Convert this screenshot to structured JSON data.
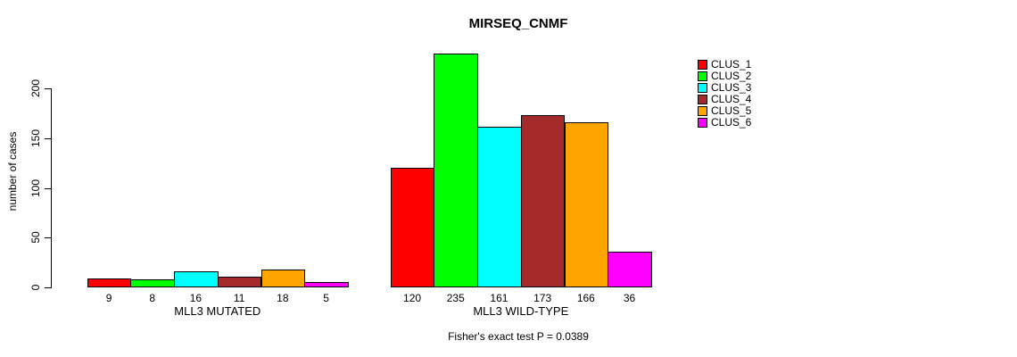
{
  "chart_data": {
    "type": "bar",
    "title": "MIRSEQ_CNMF",
    "ylabel": "number of cases",
    "xlabel": "",
    "ylim": [
      0,
      240
    ],
    "yticks": [
      0,
      50,
      100,
      150,
      200
    ],
    "grid": false,
    "legend_position": "right",
    "categories": [
      "MLL3 MUTATED",
      "MLL3 WILD-TYPE"
    ],
    "series": [
      {
        "name": "CLUS_1",
        "color": "#FF0000",
        "values": [
          9,
          120
        ]
      },
      {
        "name": "CLUS_2",
        "color": "#00FF00",
        "values": [
          8,
          235
        ]
      },
      {
        "name": "CLUS_3",
        "color": "#00FFFF",
        "values": [
          16,
          161
        ]
      },
      {
        "name": "CLUS_4",
        "color": "#A52A2A",
        "values": [
          11,
          173
        ]
      },
      {
        "name": "CLUS_5",
        "color": "#FFA500",
        "values": [
          18,
          166
        ]
      },
      {
        "name": "CLUS_6",
        "color": "#FF00FF",
        "values": [
          5,
          36
        ]
      }
    ],
    "bar_value_labels": [
      [
        "9",
        "8",
        "16",
        "11",
        "18",
        "5"
      ],
      [
        "120",
        "235",
        "161",
        "173",
        "166",
        "36"
      ]
    ],
    "annotation": "Fisher's exact test P = 0.0389"
  }
}
